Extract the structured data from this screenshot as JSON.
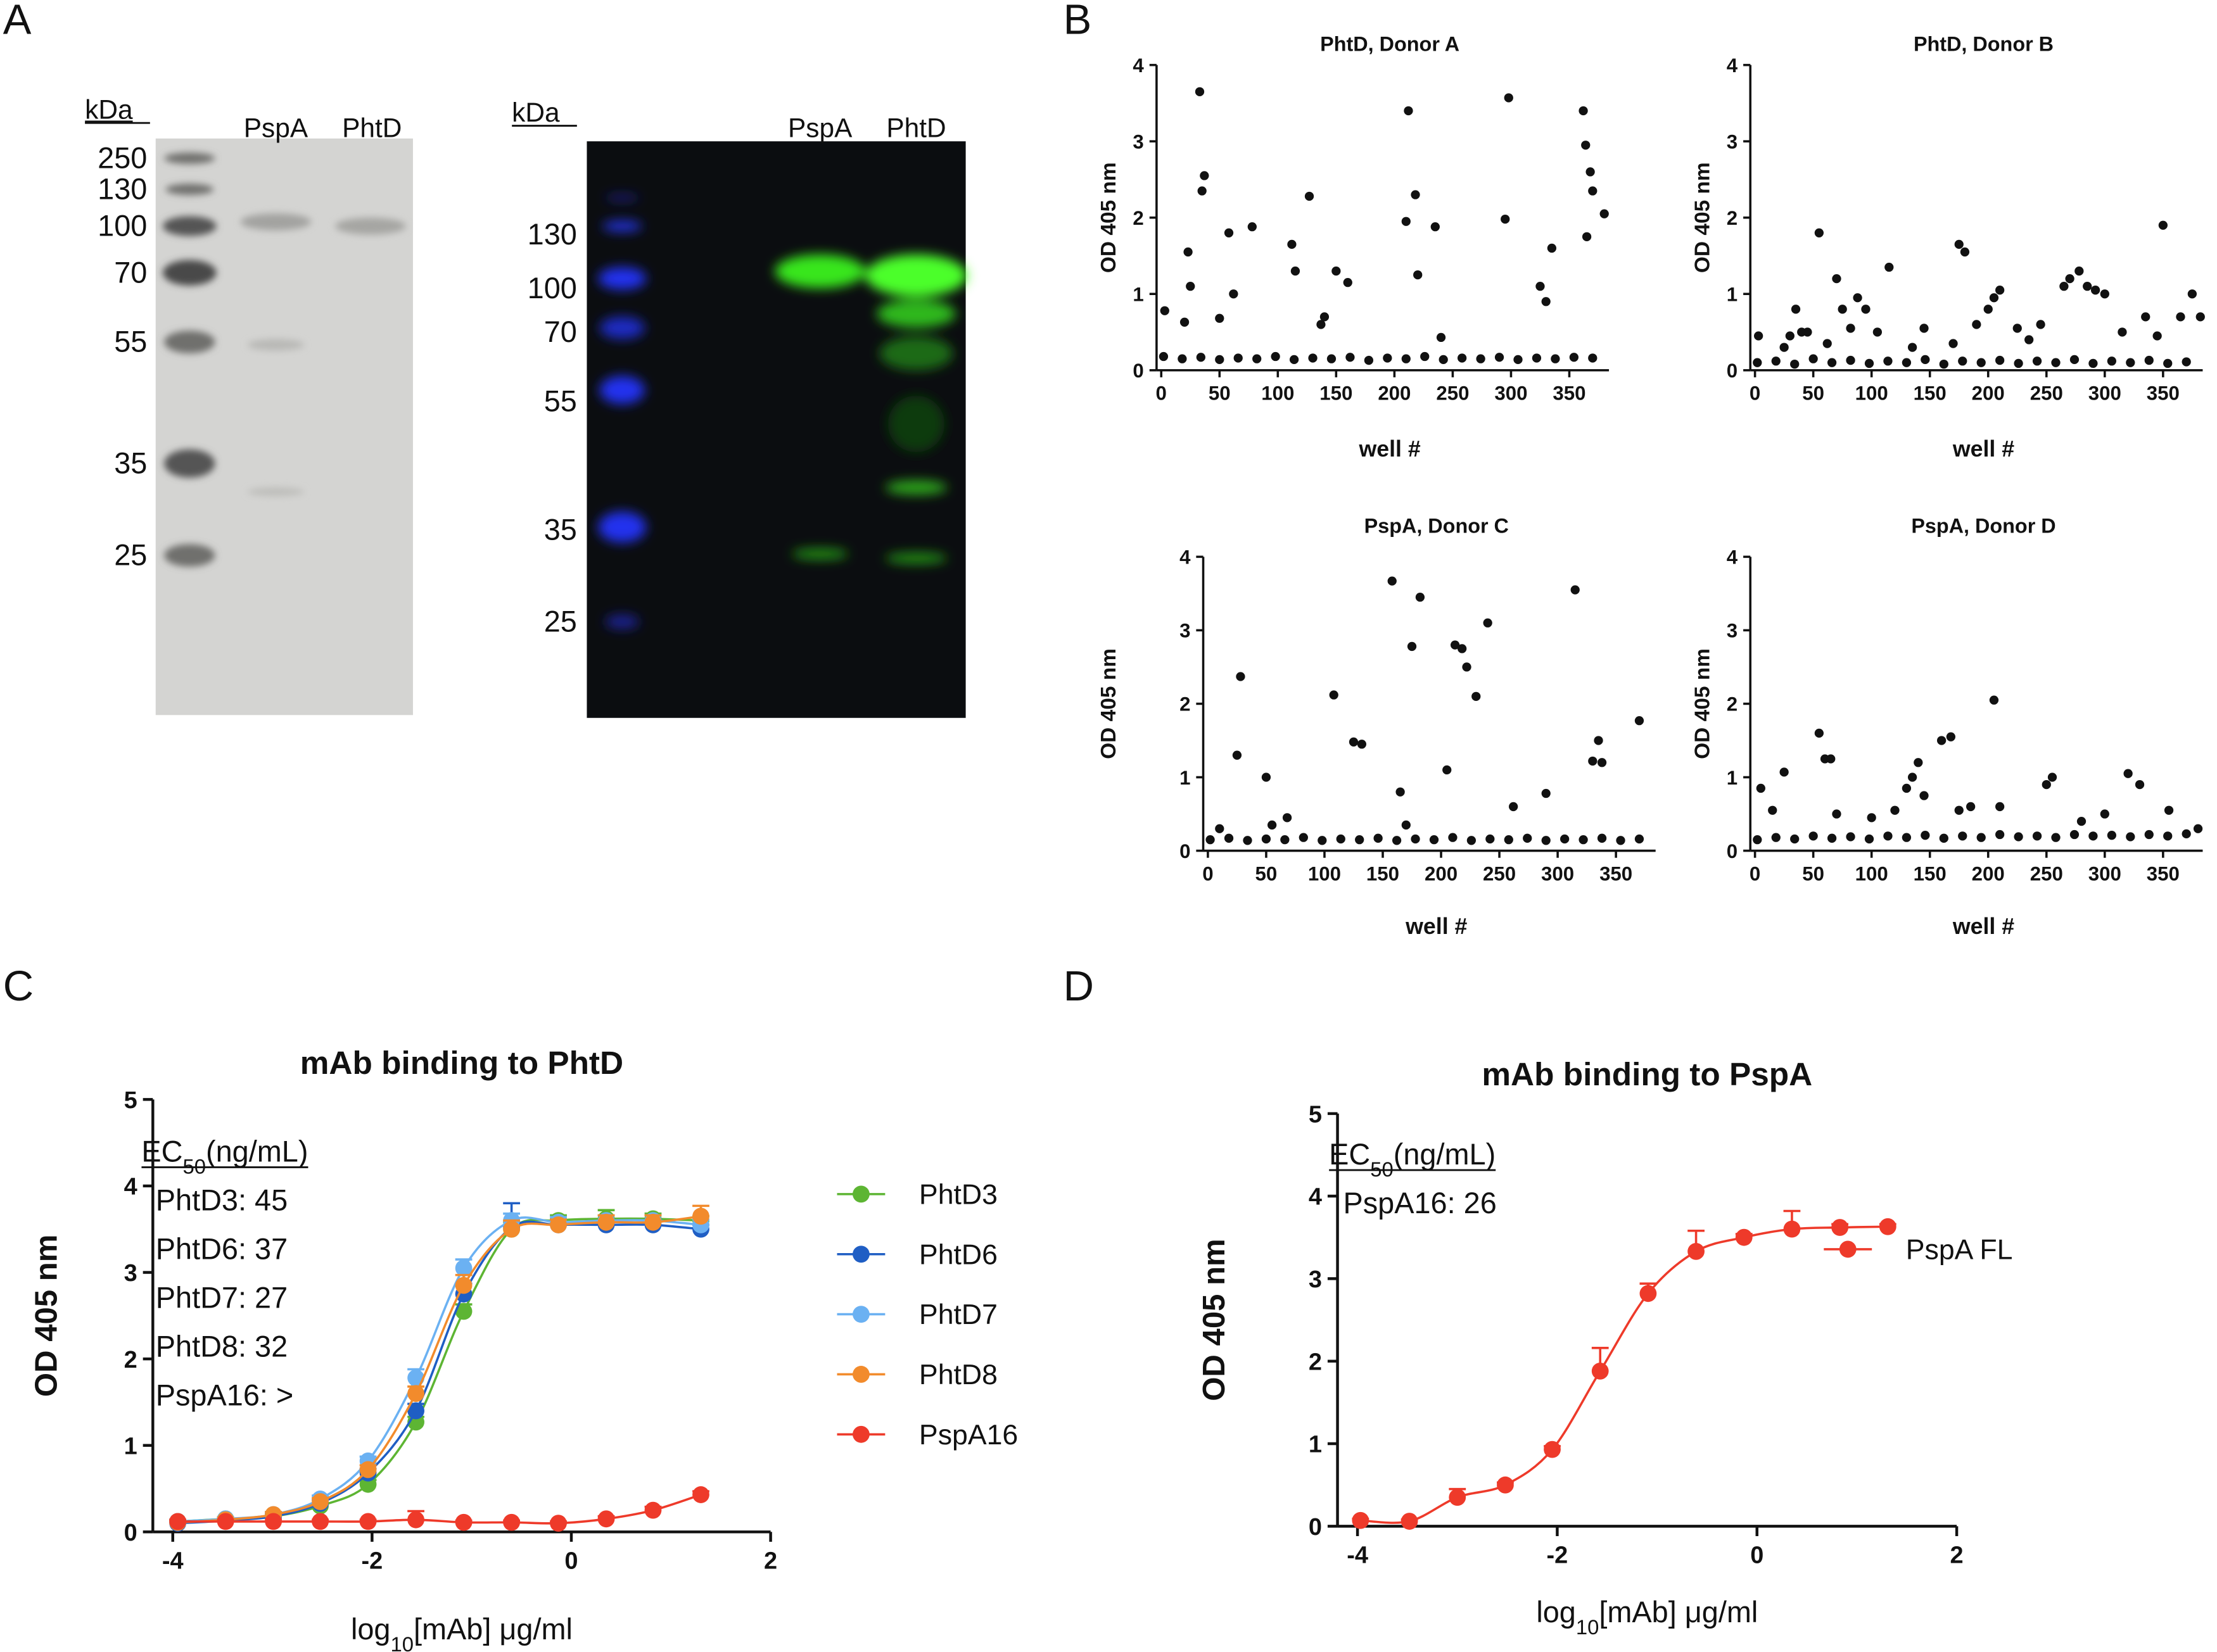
{
  "panels": [
    "A",
    "B",
    "C",
    "D"
  ],
  "gels": [
    {
      "unit": "kDa",
      "lanes": [
        "PspA",
        "PhtD"
      ],
      "markers": [
        250,
        130,
        100,
        70,
        55,
        35,
        25
      ]
    },
    {
      "unit": "kDa",
      "lanes": [
        "PspA",
        "PhtD"
      ],
      "markers": [
        130,
        100,
        70,
        55,
        35,
        25
      ]
    }
  ],
  "chart_data": [
    {
      "type": "scatter",
      "title": "PhtD, Donor A",
      "xlabel": "well #",
      "ylabel": "OD 405 nm",
      "color": "#111111",
      "xlim": [
        -4,
        384
      ],
      "xticks": [
        0,
        50,
        100,
        150,
        200,
        250,
        300,
        350
      ],
      "ylim": [
        0,
        4
      ],
      "yticks": [
        0,
        1,
        2,
        3,
        4
      ],
      "x": [
        3,
        23,
        25,
        20,
        33,
        35,
        37,
        50,
        58,
        62,
        78,
        112,
        115,
        127,
        137,
        140,
        150,
        160,
        210,
        212,
        218,
        220,
        235,
        240,
        295,
        298,
        335,
        325,
        330,
        362,
        364,
        368,
        370,
        365,
        380,
        2,
        18,
        34,
        50,
        66,
        82,
        98,
        114,
        130,
        146,
        162,
        178,
        194,
        210,
        226,
        242,
        258,
        274,
        290,
        306,
        322,
        338,
        354,
        370
      ],
      "values": [
        0.78,
        1.55,
        1.1,
        0.63,
        3.65,
        2.35,
        2.55,
        0.68,
        1.8,
        1.0,
        1.88,
        1.65,
        1.3,
        2.28,
        0.6,
        0.7,
        1.3,
        1.15,
        1.95,
        3.4,
        2.3,
        1.25,
        1.88,
        0.43,
        1.98,
        3.57,
        1.6,
        1.1,
        0.9,
        3.4,
        2.95,
        2.6,
        2.35,
        1.75,
        2.05,
        0.18,
        0.15,
        0.17,
        0.14,
        0.16,
        0.15,
        0.18,
        0.14,
        0.16,
        0.15,
        0.17,
        0.13,
        0.16,
        0.15,
        0.18,
        0.14,
        0.16,
        0.15,
        0.17,
        0.14,
        0.16,
        0.15,
        0.17,
        0.16
      ]
    },
    {
      "type": "scatter",
      "title": "PhtD, Donor B",
      "xlabel": "well #",
      "ylabel": "OD 405 nm",
      "color": "#111111",
      "xlim": [
        -4,
        384
      ],
      "xticks": [
        0,
        50,
        100,
        150,
        200,
        250,
        300,
        350
      ],
      "ylim": [
        0,
        4
      ],
      "yticks": [
        0,
        1,
        2,
        3,
        4
      ],
      "x": [
        3,
        25,
        30,
        35,
        40,
        45,
        55,
        62,
        70,
        75,
        82,
        88,
        95,
        105,
        115,
        135,
        145,
        170,
        175,
        180,
        190,
        200,
        205,
        210,
        225,
        235,
        245,
        265,
        270,
        278,
        285,
        292,
        300,
        315,
        335,
        345,
        350,
        365,
        375,
        382,
        2,
        18,
        34,
        50,
        66,
        82,
        98,
        114,
        130,
        146,
        162,
        178,
        194,
        210,
        226,
        242,
        258,
        274,
        290,
        306,
        322,
        338,
        354,
        370
      ],
      "values": [
        0.45,
        0.3,
        0.45,
        0.8,
        0.5,
        0.5,
        1.8,
        0.35,
        1.2,
        0.8,
        0.55,
        0.95,
        0.8,
        0.5,
        1.35,
        0.3,
        0.55,
        0.35,
        1.65,
        1.55,
        0.6,
        0.8,
        0.95,
        1.05,
        0.55,
        0.4,
        0.6,
        1.1,
        1.2,
        1.3,
        1.1,
        1.05,
        1.0,
        0.5,
        0.7,
        0.45,
        1.9,
        0.7,
        1.0,
        0.7,
        0.1,
        0.12,
        0.08,
        0.15,
        0.1,
        0.13,
        0.09,
        0.12,
        0.1,
        0.14,
        0.08,
        0.12,
        0.1,
        0.13,
        0.09,
        0.12,
        0.1,
        0.14,
        0.09,
        0.12,
        0.1,
        0.13,
        0.09,
        0.11
      ]
    },
    {
      "type": "scatter",
      "title": "PspA, Donor C",
      "xlabel": "well #",
      "ylabel": "OD 405 nm",
      "color": "#111111",
      "xlim": [
        -4,
        384
      ],
      "xticks": [
        0,
        50,
        100,
        150,
        200,
        250,
        300,
        350
      ],
      "ylim": [
        0,
        4
      ],
      "yticks": [
        0,
        1,
        2,
        3,
        4
      ],
      "x": [
        10,
        25,
        28,
        50,
        55,
        68,
        108,
        125,
        132,
        158,
        165,
        170,
        175,
        182,
        205,
        212,
        218,
        222,
        230,
        240,
        262,
        290,
        315,
        330,
        335,
        338,
        370,
        2,
        18,
        34,
        50,
        66,
        82,
        98,
        114,
        130,
        146,
        162,
        178,
        194,
        210,
        226,
        242,
        258,
        274,
        290,
        306,
        322,
        338,
        354,
        370
      ],
      "values": [
        0.3,
        1.3,
        2.37,
        1.0,
        0.35,
        0.45,
        2.12,
        1.48,
        1.45,
        3.67,
        0.8,
        0.35,
        2.78,
        3.45,
        1.1,
        2.8,
        2.75,
        2.5,
        2.1,
        3.1,
        0.6,
        0.78,
        3.55,
        1.22,
        1.5,
        1.2,
        1.77,
        0.15,
        0.17,
        0.14,
        0.16,
        0.15,
        0.18,
        0.14,
        0.16,
        0.15,
        0.17,
        0.14,
        0.16,
        0.15,
        0.18,
        0.14,
        0.16,
        0.15,
        0.17,
        0.14,
        0.16,
        0.15,
        0.17,
        0.14,
        0.16
      ]
    },
    {
      "type": "scatter",
      "title": "PspA, Donor D",
      "xlabel": "well #",
      "ylabel": "OD 405 nm",
      "color": "#111111",
      "xlim": [
        -4,
        384
      ],
      "xticks": [
        0,
        50,
        100,
        150,
        200,
        250,
        300,
        350
      ],
      "ylim": [
        0,
        4
      ],
      "yticks": [
        0,
        1,
        2,
        3,
        4
      ],
      "x": [
        5,
        15,
        25,
        55,
        60,
        65,
        70,
        100,
        120,
        130,
        135,
        140,
        145,
        160,
        168,
        175,
        185,
        205,
        210,
        250,
        255,
        280,
        300,
        320,
        330,
        355,
        380,
        2,
        18,
        34,
        50,
        66,
        82,
        98,
        114,
        130,
        146,
        162,
        178,
        194,
        210,
        226,
        242,
        258,
        274,
        290,
        306,
        322,
        338,
        354,
        370
      ],
      "values": [
        0.85,
        0.55,
        1.07,
        1.6,
        1.25,
        1.25,
        0.5,
        0.45,
        0.55,
        0.85,
        1.0,
        1.2,
        0.75,
        1.5,
        1.55,
        0.55,
        0.6,
        2.05,
        0.6,
        0.9,
        1.0,
        0.4,
        0.5,
        1.05,
        0.9,
        0.55,
        0.3,
        0.15,
        0.18,
        0.16,
        0.2,
        0.17,
        0.19,
        0.16,
        0.2,
        0.18,
        0.21,
        0.17,
        0.2,
        0.18,
        0.22,
        0.19,
        0.2,
        0.18,
        0.22,
        0.2,
        0.21,
        0.19,
        0.22,
        0.2,
        0.23
      ]
    },
    {
      "type": "line",
      "title": "mAb binding to PhtD",
      "xlabel": [
        "log",
        "10",
        "[mAb] μg/ml"
      ],
      "ylabel": "OD 405 nm",
      "ec50_header": [
        "EC",
        "50",
        "(ng/mL)"
      ],
      "annotations": [
        "PhtD3: 45",
        "PhtD6: 37",
        "PhtD7: 27",
        "PhtD8: 32",
        "PspA16: >"
      ],
      "xlim": [
        -4.2,
        2
      ],
      "xticks": [
        -4,
        -2,
        0,
        2
      ],
      "ylim": [
        0,
        5
      ],
      "yticks": [
        0,
        1,
        2,
        3,
        4,
        5
      ],
      "legend": "right",
      "x": [
        -3.95,
        -3.47,
        -2.99,
        -2.52,
        -2.04,
        -1.56,
        -1.08,
        -0.6,
        -0.13,
        0.35,
        0.82,
        1.3
      ],
      "series": [
        {
          "name": "PhtD3",
          "color": "#5db533",
          "values": [
            0.12,
            0.15,
            0.18,
            0.3,
            0.55,
            1.27,
            2.55,
            3.5,
            3.6,
            3.62,
            3.62,
            3.6
          ],
          "errors": [
            0.02,
            0.02,
            0.03,
            0.03,
            0.05,
            0.06,
            0.08,
            0.08,
            0.06,
            0.1,
            0.06,
            0.05
          ]
        },
        {
          "name": "PhtD6",
          "color": "#1f5ec4",
          "values": [
            0.1,
            0.13,
            0.18,
            0.33,
            0.68,
            1.4,
            2.75,
            3.52,
            3.55,
            3.55,
            3.55,
            3.5
          ],
          "errors": [
            0.02,
            0.02,
            0.03,
            0.04,
            0.05,
            0.08,
            0.12,
            0.28,
            0.06,
            0.05,
            0.06,
            0.05
          ]
        },
        {
          "name": "PhtD7",
          "color": "#6bb1f2",
          "values": [
            0.12,
            0.15,
            0.2,
            0.38,
            0.82,
            1.78,
            3.05,
            3.6,
            3.58,
            3.6,
            3.6,
            3.55
          ],
          "errors": [
            0.02,
            0.02,
            0.03,
            0.04,
            0.05,
            0.1,
            0.1,
            0.08,
            0.06,
            0.06,
            0.06,
            0.06
          ]
        },
        {
          "name": "PhtD8",
          "color": "#f28b2c",
          "values": [
            0.11,
            0.14,
            0.2,
            0.35,
            0.72,
            1.6,
            2.85,
            3.5,
            3.55,
            3.58,
            3.58,
            3.65
          ],
          "errors": [
            0.02,
            0.02,
            0.03,
            0.04,
            0.05,
            0.08,
            0.12,
            0.1,
            0.06,
            0.08,
            0.08,
            0.12
          ]
        },
        {
          "name": "PspA16",
          "color": "#ee3a2a",
          "values": [
            0.12,
            0.12,
            0.12,
            0.12,
            0.12,
            0.14,
            0.11,
            0.11,
            0.1,
            0.15,
            0.25,
            0.43
          ],
          "errors": [
            0.02,
            0.02,
            0.02,
            0.02,
            0.02,
            0.1,
            0.02,
            0.02,
            0.02,
            0.03,
            0.04,
            0.04
          ]
        }
      ]
    },
    {
      "type": "line",
      "title": "mAb binding to PspA",
      "xlabel": [
        "log",
        "10",
        "[mAb] μg/ml"
      ],
      "ylabel": "OD 405 nm",
      "ec50_header": [
        "EC",
        "50",
        "(ng/mL)"
      ],
      "annotations": [
        "PspA16: 26"
      ],
      "xlim": [
        -4.2,
        2
      ],
      "xticks": [
        -4,
        -2,
        0,
        2
      ],
      "ylim": [
        0,
        5
      ],
      "yticks": [
        0,
        1,
        2,
        3,
        4,
        5
      ],
      "legend": "right",
      "x": [
        -3.97,
        -3.48,
        -3.0,
        -2.52,
        -2.05,
        -1.57,
        -1.09,
        -0.61,
        -0.13,
        0.35,
        0.83,
        1.31
      ],
      "series": [
        {
          "name": "PspA FL",
          "color": "#ee3a2a",
          "values": [
            0.07,
            0.06,
            0.35,
            0.5,
            0.93,
            1.88,
            2.82,
            3.33,
            3.5,
            3.6,
            3.62,
            3.63
          ],
          "errors": [
            0.02,
            0.02,
            0.1,
            0.03,
            0.04,
            0.28,
            0.12,
            0.25,
            0.04,
            0.22,
            0.04,
            0.03
          ]
        }
      ]
    }
  ]
}
